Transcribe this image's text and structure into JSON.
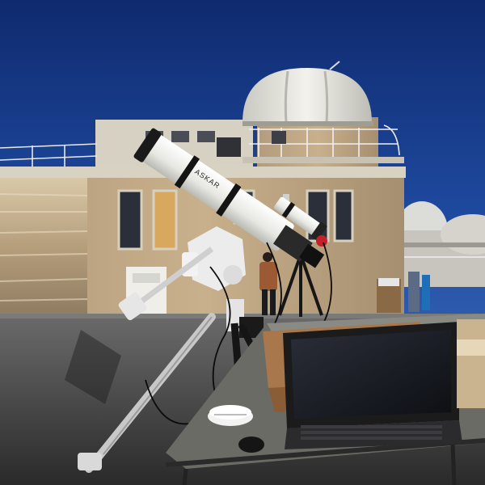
{
  "photo": {
    "telescope_brand": "ASKAR"
  }
}
